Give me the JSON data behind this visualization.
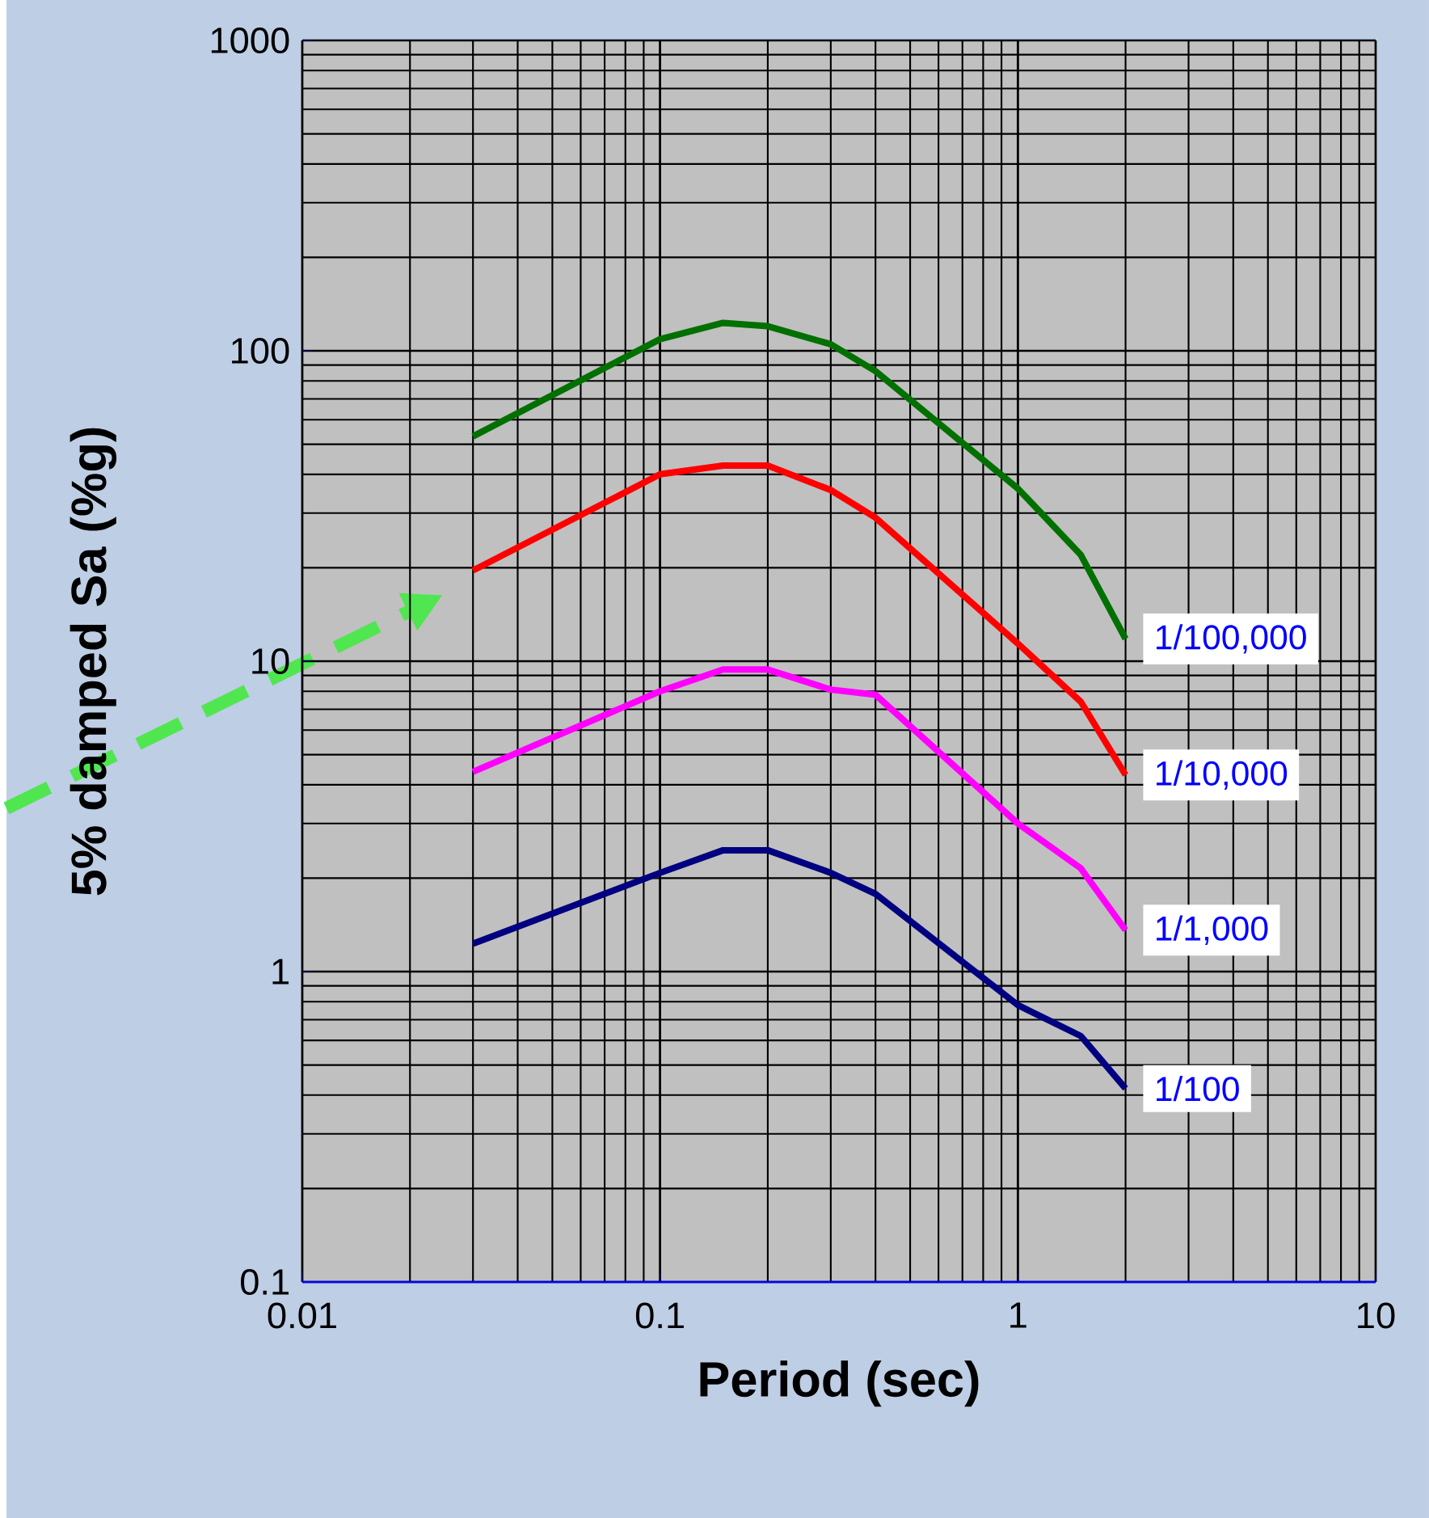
{
  "chart_data": {
    "type": "line",
    "xlabel": "Period (sec)",
    "ylabel": "5% damped Sa (%g)",
    "log": "xy",
    "grid": true,
    "x": [
      0.03,
      0.1,
      0.15,
      0.2,
      0.3,
      0.4,
      1,
      1.5,
      2
    ],
    "series": [
      {
        "name": "1/100,000",
        "color": "#007000",
        "values": [
          53,
          109,
          123,
          120,
          105,
          86,
          36,
          22,
          11.8
        ]
      },
      {
        "name": "1/10,000",
        "color": "#ff0000",
        "values": [
          19.6,
          40,
          42.7,
          42.7,
          35.6,
          29,
          11.4,
          7.4,
          4.3
        ]
      },
      {
        "name": "1/1,000",
        "color": "#ff00ff",
        "values": [
          4.4,
          8,
          9.4,
          9.4,
          8.1,
          7.8,
          3.0,
          2.15,
          1.36
        ]
      },
      {
        "name": "1/100",
        "color": "#000080",
        "values": [
          1.23,
          2.08,
          2.46,
          2.46,
          2.08,
          1.78,
          0.78,
          0.62,
          0.42
        ]
      }
    ],
    "xlim": [
      0.01,
      10
    ],
    "ylim": [
      0.1,
      1000
    ],
    "xticks": [
      0.01,
      0.1,
      1,
      10
    ],
    "yticks": [
      0.1,
      1,
      10,
      100,
      1000
    ]
  }
}
